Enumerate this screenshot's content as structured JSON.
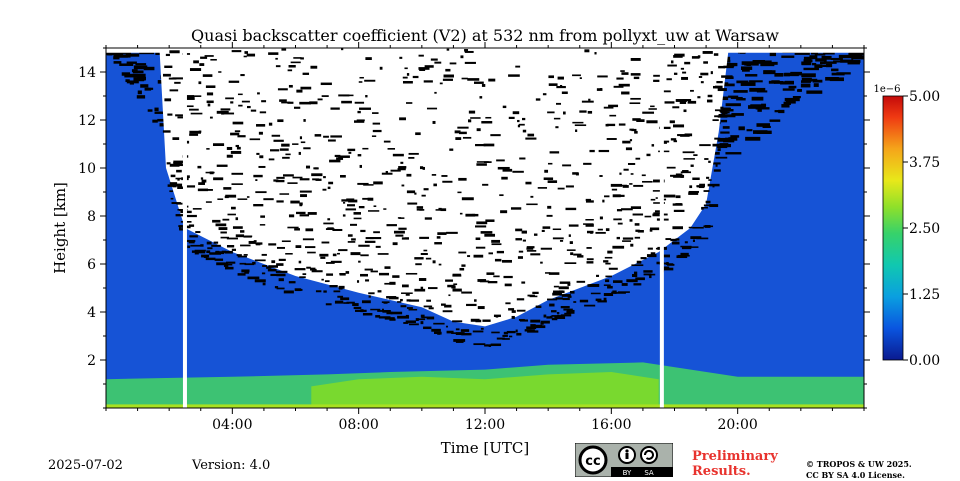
{
  "chart_data": {
    "type": "heatmap",
    "title": "Quasi backscatter coefficient (V2) at 532 nm from pollyxt_uw at Warsaw",
    "xlabel": "Time [UTC]",
    "ylabel": "Height [km]",
    "xlim": [
      0,
      24
    ],
    "ylim": [
      0,
      15
    ],
    "x_ticks": [
      {
        "value": 4,
        "label": "04:00"
      },
      {
        "value": 8,
        "label": "08:00"
      },
      {
        "value": 12,
        "label": "12:00"
      },
      {
        "value": 16,
        "label": "16:00"
      },
      {
        "value": 20,
        "label": "20:00"
      }
    ],
    "y_ticks": [
      {
        "value": 2,
        "label": "2"
      },
      {
        "value": 4,
        "label": "4"
      },
      {
        "value": 6,
        "label": "6"
      },
      {
        "value": 8,
        "label": "8"
      },
      {
        "value": 10,
        "label": "10"
      },
      {
        "value": 12,
        "label": "12"
      },
      {
        "value": 14,
        "label": "14"
      }
    ],
    "colorbar": {
      "offset_label": "1e−6",
      "min": 0,
      "max": 5,
      "ticks": [
        "0.00",
        "1.25",
        "2.50",
        "3.75",
        "5.00"
      ],
      "colormap": [
        "#0a1a8f",
        "#0a55e0",
        "#0a9fe0",
        "#10c8b0",
        "#37d26a",
        "#8fe02a",
        "#e8e81a",
        "#f5a51a",
        "#ef3a12",
        "#c40a0a"
      ]
    },
    "data_gaps_utc": [
      2.5,
      17.6
    ],
    "signal_top_km": [
      [
        0,
        14.8
      ],
      [
        1.7,
        14.8
      ],
      [
        1.9,
        10.0
      ],
      [
        2.5,
        7.5
      ],
      [
        4,
        6.5
      ],
      [
        6,
        5.5
      ],
      [
        8,
        4.8
      ],
      [
        10,
        4.2
      ],
      [
        11,
        3.6
      ],
      [
        12,
        3.4
      ],
      [
        13,
        3.8
      ],
      [
        14,
        4.5
      ],
      [
        16,
        5.5
      ],
      [
        17.5,
        6.5
      ],
      [
        18.5,
        7.5
      ],
      [
        19,
        8.5
      ],
      [
        19.4,
        11.5
      ],
      [
        19.7,
        14.8
      ],
      [
        24,
        14.8
      ]
    ],
    "noise_band_top_km": [
      [
        0,
        14.8
      ],
      [
        2,
        11.0
      ],
      [
        4,
        8.5
      ],
      [
        8,
        7.5
      ],
      [
        12,
        6.8
      ],
      [
        16,
        7.8
      ],
      [
        19,
        10.0
      ],
      [
        24,
        14.8
      ]
    ],
    "boundary_layer": [
      {
        "time_utc": 0,
        "top_km": 1.2,
        "value": 2.1
      },
      {
        "time_utc": 4,
        "top_km": 1.3,
        "value": 2.0
      },
      {
        "time_utc": 7,
        "top_km": 1.4,
        "value": 2.4
      },
      {
        "time_utc": 9,
        "top_km": 1.5,
        "value": 2.7
      },
      {
        "time_utc": 12,
        "top_km": 1.6,
        "value": 2.6
      },
      {
        "time_utc": 14,
        "top_km": 1.8,
        "value": 2.5
      },
      {
        "time_utc": 17,
        "top_km": 1.9,
        "value": 2.3
      },
      {
        "time_utc": 20,
        "top_km": 1.3,
        "value": 1.8
      },
      {
        "time_utc": 24,
        "top_km": 1.3,
        "value": 1.7
      }
    ],
    "background_value": 0.3,
    "grid": false
  },
  "footer": {
    "date": "2025-07-02",
    "version": "Version: 4.0",
    "preliminary_line1": "Preliminary",
    "preliminary_line2": "Results.",
    "copyright_line1": "© TROPOS & UW 2025.",
    "copyright_line2": "CC BY SA 4.0 License.",
    "license_badge_text": [
      "BY",
      "SA"
    ]
  }
}
